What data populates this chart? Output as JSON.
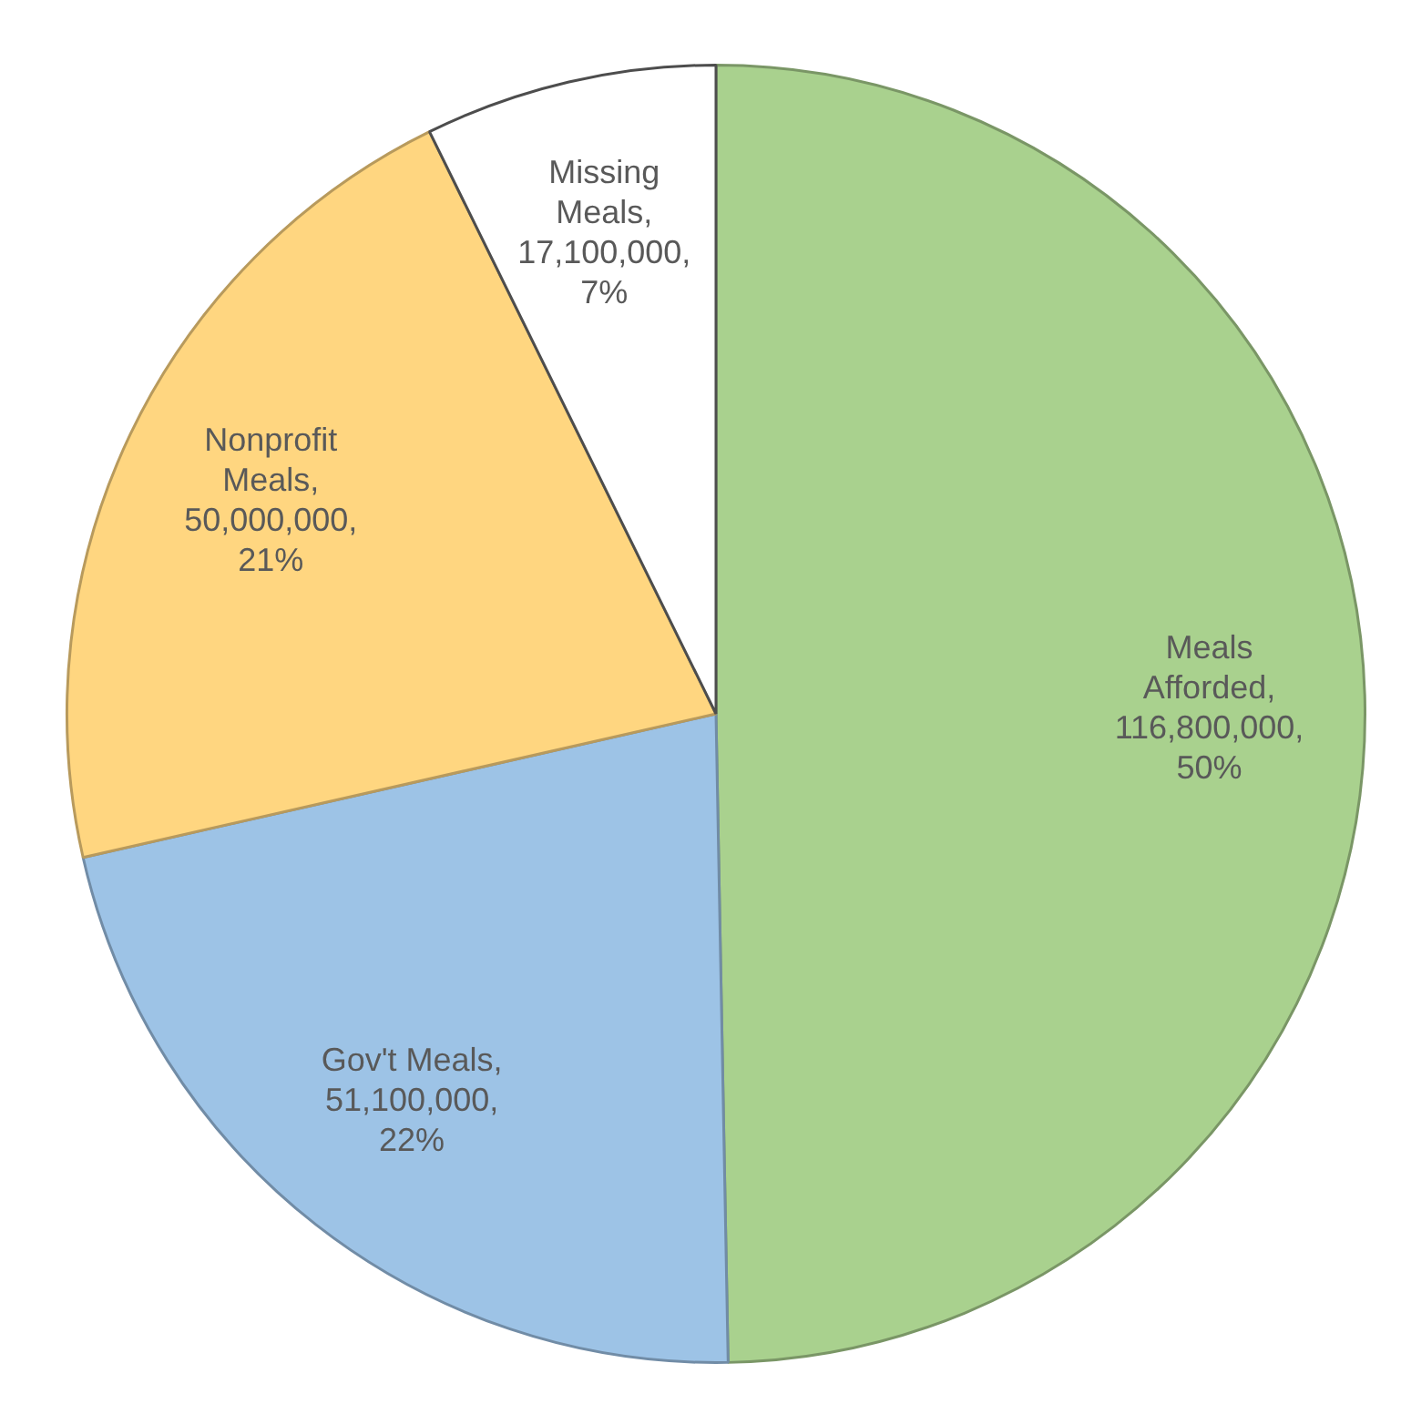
{
  "chart_data": {
    "type": "pie",
    "categories": [
      "Meals Afforded",
      "Gov't Meals",
      "Nonprofit Meals",
      "Missing Meals"
    ],
    "values": [
      116800000,
      51100000,
      50000000,
      17100000
    ],
    "value_labels": [
      ", 116,800,000, 50%",
      ", 51,100,000, 22%",
      ", 50,000,000, 21%",
      ", 17,100,000, 7%"
    ],
    "colors": [
      "#a9d18e",
      "#9dc3e6",
      "#ffd680",
      "#ffffff"
    ],
    "legend": false
  }
}
